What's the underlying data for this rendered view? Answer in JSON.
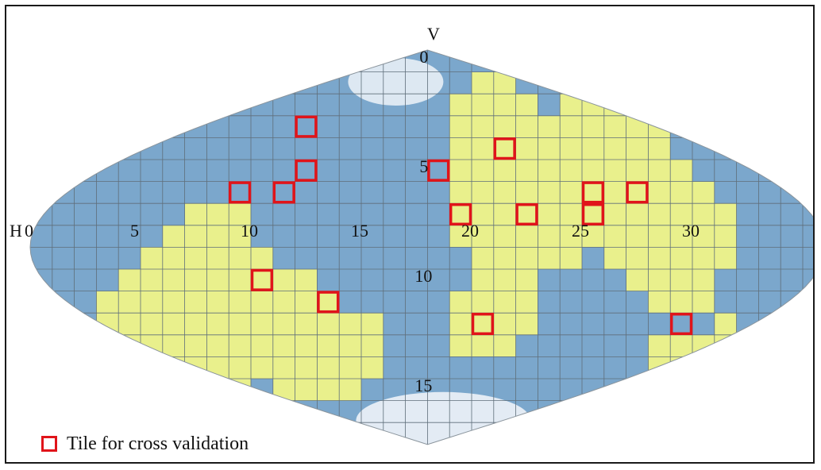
{
  "map": {
    "axis_labels": {
      "vertical": "V",
      "horizontal": "H"
    },
    "h_tick_labels": [
      {
        "h": 0,
        "text": "0"
      },
      {
        "h": 5,
        "text": "5"
      },
      {
        "h": 10,
        "text": "10"
      },
      {
        "h": 15,
        "text": "15"
      },
      {
        "h": 20,
        "text": "20"
      },
      {
        "h": 25,
        "text": "25"
      },
      {
        "h": 30,
        "text": "30"
      }
    ],
    "v_tick_labels": [
      {
        "v": 0,
        "text": "0"
      },
      {
        "v": 5,
        "text": "5"
      },
      {
        "v": 10,
        "text": "10"
      },
      {
        "v": 15,
        "text": "15"
      }
    ],
    "grid": {
      "h_count": 36,
      "v_count": 18
    },
    "colors": {
      "ocean": "#7ba7cc",
      "land_tile": "#e9f08c",
      "ice": "#eef3f8",
      "grid_line": "#5f6e7a",
      "validation": "#e0141a"
    },
    "land_tiles": [
      [
        3,
        [
          [
            11,
            13
          ]
        ]
      ],
      [
        4,
        [
          [
            10,
            15
          ]
        ]
      ],
      [
        5,
        [
          [
            9,
            15
          ]
        ]
      ],
      [
        6,
        [
          [
            8,
            15
          ]
        ]
      ],
      [
        7,
        [
          [
            7,
            14
          ]
        ]
      ],
      [
        8,
        [
          [
            7,
            11
          ],
          [
            12,
            15
          ]
        ]
      ],
      [
        9,
        [
          [
            7,
            12
          ],
          [
            13,
            15
          ]
        ]
      ],
      [
        10,
        [
          [
            9,
            14
          ]
        ]
      ],
      [
        11,
        [
          [
            10,
            15
          ]
        ]
      ],
      [
        12,
        [
          [
            10,
            15
          ]
        ]
      ],
      [
        13,
        [
          [
            11,
            15
          ]
        ]
      ],
      [
        14,
        [
          [
            12,
            15
          ]
        ]
      ],
      [
        15,
        [
          [
            12,
            14
          ]
        ]
      ],
      [
        19,
        [
          [
            2,
            8
          ],
          [
            11,
            13
          ]
        ]
      ],
      [
        20,
        [
          [
            1,
            13
          ]
        ]
      ],
      [
        21,
        [
          [
            1,
            13
          ]
        ]
      ],
      [
        22,
        [
          [
            2,
            12
          ]
        ]
      ],
      [
        23,
        [
          [
            3,
            9
          ]
        ]
      ],
      [
        24,
        [
          [
            2,
            9
          ]
        ]
      ],
      [
        25,
        [
          [
            2,
            8
          ]
        ]
      ],
      [
        26,
        [
          [
            2,
            9
          ]
        ]
      ],
      [
        27,
        [
          [
            2,
            10
          ]
        ]
      ],
      [
        28,
        [
          [
            3,
            11
          ],
          [
            13,
            15
          ]
        ]
      ],
      [
        29,
        [
          [
            5,
            11
          ],
          [
            13,
            15
          ]
        ]
      ],
      [
        30,
        [
          [
            6,
            11
          ],
          [
            13,
            15
          ]
        ]
      ],
      [
        31,
        [
          [
            7,
            9
          ],
          [
            12,
            14
          ]
        ]
      ],
      [
        32,
        [
          [
            13,
            14
          ]
        ]
      ],
      [
        33,
        [
          [
            13,
            14
          ]
        ]
      ]
    ],
    "validation_tiles": [
      [
        12,
        3
      ],
      [
        12,
        5
      ],
      [
        9,
        6
      ],
      [
        11,
        6
      ],
      [
        10,
        10
      ],
      [
        13,
        11
      ],
      [
        18,
        5
      ],
      [
        21,
        4
      ],
      [
        19,
        7
      ],
      [
        22,
        7
      ],
      [
        20,
        12
      ],
      [
        25,
        6
      ],
      [
        25,
        7
      ],
      [
        27,
        6
      ],
      [
        29,
        12
      ]
    ]
  },
  "legend": {
    "label": "Tile for cross validation"
  }
}
